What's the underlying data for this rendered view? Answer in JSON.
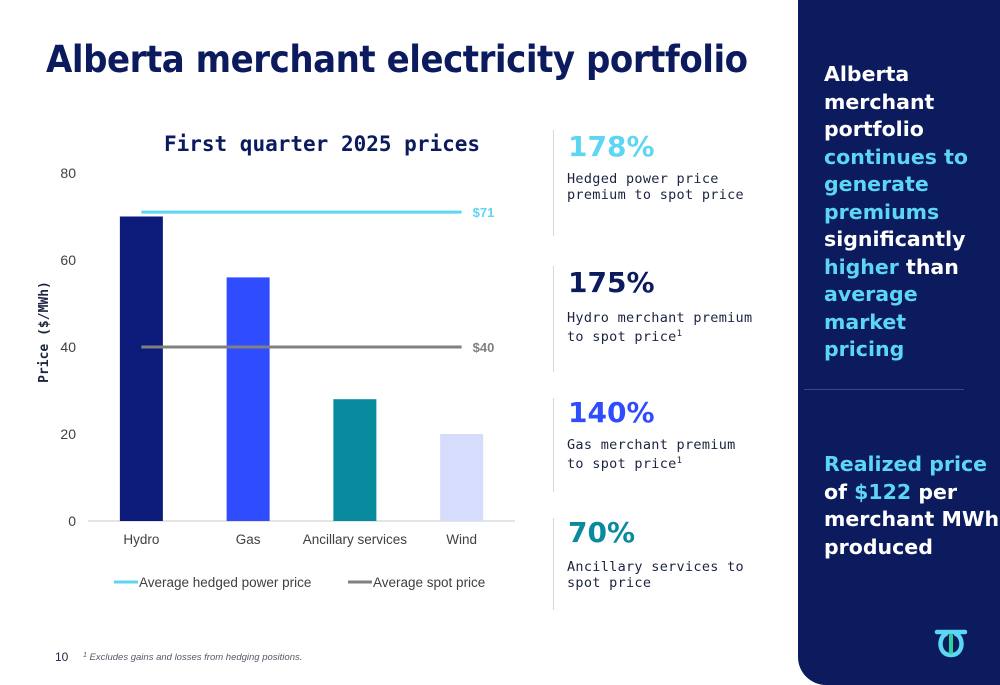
{
  "page": {
    "title": "Alberta merchant electricity portfolio",
    "page_number": "10",
    "footnote_marker": "1",
    "footnote": "Excludes gains and losses from hedging positions."
  },
  "chart_data": {
    "type": "bar",
    "title": "First quarter 2025 prices",
    "ylabel": "Price ($/MWh)",
    "xlabel": "",
    "categories": [
      "Hydro",
      "Gas",
      "Ancillary services",
      "Wind"
    ],
    "values": [
      70,
      56,
      28,
      20
    ],
    "bar_colors": [
      "#0c1a7a",
      "#2f4cff",
      "#0a8a9e",
      "#d6dcfc"
    ],
    "ylim": [
      0,
      80
    ],
    "yticks": [
      0,
      20,
      40,
      60,
      80
    ],
    "reference_lines": [
      {
        "name": "Average hedged power price",
        "value": 71,
        "label": "$71",
        "color": "#5cd6f3"
      },
      {
        "name": "Average spot price",
        "value": 40,
        "label": "$40",
        "color": "#808080"
      }
    ],
    "legend_position": "bottom",
    "grid": false
  },
  "stats": [
    {
      "value": "178%",
      "color": "#5cd6f3",
      "line1": "Hedged power price",
      "line2": "premium to spot price",
      "sup": ""
    },
    {
      "value": "175%",
      "color": "#0c1a5e",
      "line1": "Hydro merchant premium",
      "line2": "to spot price",
      "sup": "1"
    },
    {
      "value": "140%",
      "color": "#2f4cff",
      "line1": "Gas merchant premium",
      "line2": "to spot price",
      "sup": "1"
    },
    {
      "value": "70%",
      "color": "#0a8a9e",
      "line1": "Ancillary services to",
      "line2": "spot price",
      "sup": ""
    }
  ],
  "side_panel": {
    "message1": {
      "l1": "Alberta",
      "l2": "merchant",
      "l3": "portfolio",
      "l4": "continues to",
      "l5": "generate",
      "l6": "premiums",
      "l7": "significantly",
      "l8a": "higher",
      "l8b": " than",
      "l9": "average market",
      "l10": "pricing"
    },
    "message2": {
      "l1": "Realized price",
      "l2a": "of ",
      "l2b": "$122",
      "l2c": " per",
      "l3": "merchant MWh",
      "l4": "produced"
    },
    "logo_icon": "company-logo-icon"
  },
  "colors": {
    "navy": "#0c1a5e",
    "accent": "#5cd6f3"
  }
}
